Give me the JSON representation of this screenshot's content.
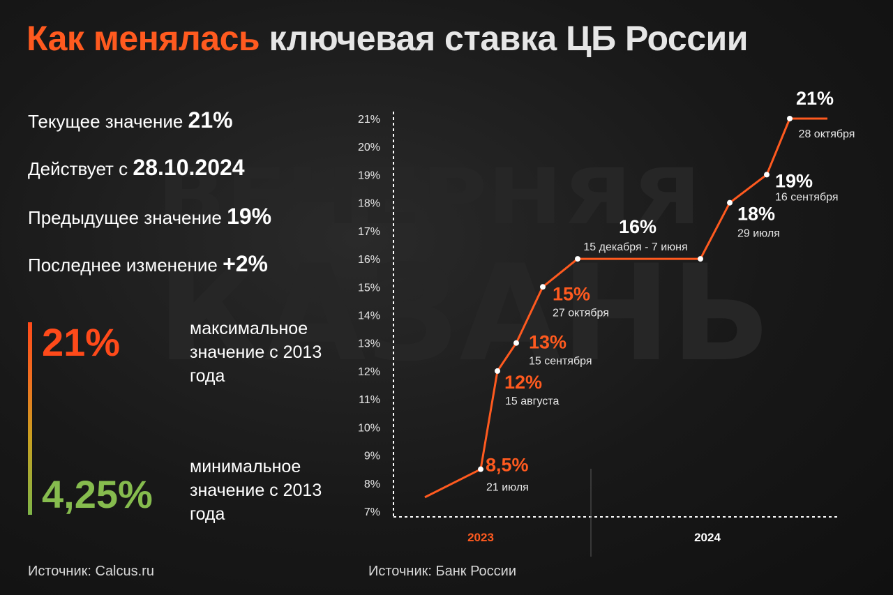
{
  "title": {
    "accent": "Как менялась",
    "rest": "ключевая ставка ЦБ России"
  },
  "stats": [
    {
      "label": "Текущее значение",
      "value": "21%"
    },
    {
      "label": "Действует с",
      "value": "28.10.2024"
    },
    {
      "label": "Предыдущее значение",
      "value": "19%"
    },
    {
      "label": "Последнее изменение",
      "value": "+2%"
    }
  ],
  "extremes": {
    "max": {
      "value": "21%",
      "desc": "максимальное значение с 2013 года"
    },
    "min": {
      "value": "4,25%",
      "desc": "минимальное значение с 2013 года"
    }
  },
  "watermark": {
    "line1": "ВЕЧЕРНЯЯ",
    "line2": "КАЗАНЬ"
  },
  "sources": {
    "left": "Источник: Calcus.ru",
    "right": "Источник: Банк России"
  },
  "colors": {
    "accent": "#ff5a1f",
    "line": "#ff5a1f",
    "green": "#86bc4e",
    "text": "#ffffff"
  },
  "chart_data": {
    "type": "line",
    "title": "Как менялась ключевая ставка ЦБ России",
    "ylim": [
      7,
      21
    ],
    "yticks": [
      "21%",
      "20%",
      "19%",
      "18%",
      "17%",
      "16%",
      "15%",
      "14%",
      "13%",
      "12%",
      "11%",
      "10%",
      "9%",
      "8%",
      "7%"
    ],
    "years": [
      "2023",
      "2024"
    ],
    "start_value": 7.5,
    "points": [
      {
        "value": 8.5,
        "label": "8,5%",
        "date": "21 июля",
        "year": "2023"
      },
      {
        "value": 12,
        "label": "12%",
        "date": "15 августа",
        "year": "2023"
      },
      {
        "value": 13,
        "label": "13%",
        "date": "15 сентября",
        "year": "2023"
      },
      {
        "value": 15,
        "label": "15%",
        "date": "27 октября",
        "year": "2023"
      },
      {
        "value": 16,
        "label": "16%",
        "date": "15 декабря - 7 июня",
        "year": "2023"
      },
      {
        "value": 16,
        "label": "",
        "date": "",
        "year": "2024"
      },
      {
        "value": 18,
        "label": "18%",
        "date": "29 июля",
        "year": "2024"
      },
      {
        "value": 19,
        "label": "19%",
        "date": "16 сентября",
        "year": "2024"
      },
      {
        "value": 21,
        "label": "21%",
        "date": "28 октября",
        "year": "2024"
      }
    ],
    "end_value": 21
  }
}
